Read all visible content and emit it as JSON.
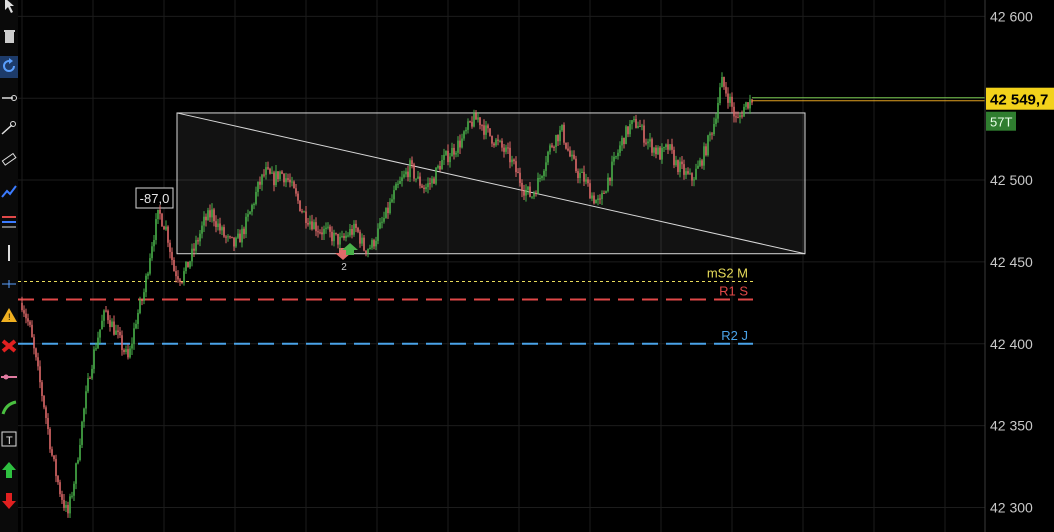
{
  "toolbar": {
    "items": [
      {
        "icon": "cursor-icon"
      },
      {
        "icon": "trash-icon"
      },
      {
        "icon": "refresh-icon",
        "active": true
      },
      {
        "icon": "line-tool-icon"
      },
      {
        "icon": "ray-tool-icon"
      },
      {
        "icon": "ruler-icon"
      },
      {
        "icon": "indicator-icon"
      },
      {
        "icon": "fibonacci-icon"
      },
      {
        "icon": "vertical-line-icon"
      },
      {
        "icon": "crosshair-icon"
      },
      {
        "icon": "alert-icon"
      },
      {
        "icon": "close-order-icon"
      },
      {
        "icon": "price-level-icon"
      },
      {
        "icon": "curve-icon"
      },
      {
        "icon": "text-icon"
      },
      {
        "icon": "buy-arrow-icon"
      },
      {
        "icon": "sell-arrow-icon"
      }
    ]
  },
  "colors": {
    "background": "#000000",
    "grid": "#1c1c1c",
    "candle_up": "#49b14a",
    "candle_down": "#e06a6a",
    "price_tag_bg": "#f2d21b",
    "volume_tag_bg": "#2f7d2f",
    "ms2": "#e8dc5a",
    "r1": "#e04848",
    "r2": "#4aa3e8",
    "last_line_a": "#78c850",
    "last_line_b": "#e0a020"
  },
  "axis": {
    "price_labels": [
      "42 600",
      "42 550",
      "42 500",
      "42 450",
      "42 400",
      "42 350",
      "42 300"
    ]
  },
  "chart_data": {
    "type": "candlestick",
    "ylim": [
      42285,
      42610
    ],
    "grid": true,
    "last_price": "42 549,7",
    "last_price_value": 42549.7,
    "volume_tag": "57T",
    "levels": [
      {
        "label": "mS2 M",
        "value": 42438,
        "style": "dotted",
        "color": "#e8dc5a"
      },
      {
        "label": "R1 S",
        "value": 42427,
        "style": "dashed",
        "color": "#e04848"
      },
      {
        "label": "R2 J",
        "value": 42400,
        "style": "dashed",
        "color": "#4aa3e8"
      }
    ],
    "rectangle": {
      "top": 42541,
      "bottom": 42455
    },
    "range_measure": "-87,0",
    "marker_count": "2",
    "path": [
      42425,
      42410,
      42385,
      42360,
      42330,
      42310,
      42295,
      42320,
      42355,
      42385,
      42405,
      42420,
      42410,
      42400,
      42390,
      42415,
      42430,
      42460,
      42480,
      42470,
      42445,
      42440,
      42450,
      42462,
      42475,
      42480,
      42470,
      42463,
      42460,
      42468,
      42480,
      42495,
      42505,
      42500,
      42505,
      42500,
      42490,
      42480,
      42475,
      42470,
      42468,
      42465,
      42462,
      42468,
      42470,
      42458,
      42460,
      42470,
      42480,
      42492,
      42500,
      42508,
      42500,
      42495,
      42500,
      42510,
      42515,
      42520,
      42525,
      42535,
      42538,
      42530,
      42525,
      42520,
      42515,
      42505,
      42495,
      42490,
      42500,
      42515,
      42525,
      42530,
      42515,
      42505,
      42500,
      42490,
      42485,
      42500,
      42512,
      42525,
      42533,
      42535,
      42525,
      42520,
      42515,
      42520,
      42510,
      42505,
      42500,
      42508,
      42520,
      42535,
      42560,
      42550,
      42535,
      42545,
      42550
    ]
  }
}
